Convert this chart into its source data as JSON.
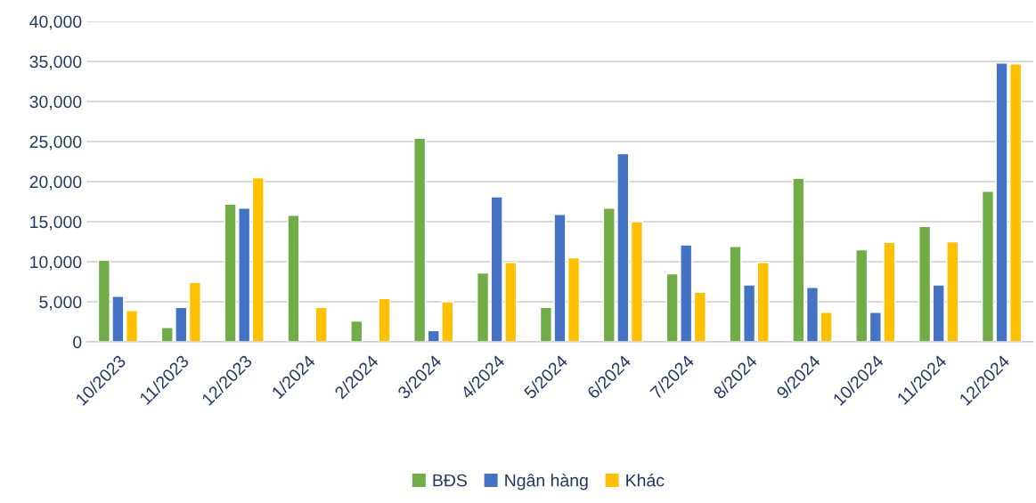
{
  "chart_data": {
    "type": "bar",
    "categories": [
      "10/2023",
      "11/2023",
      "12/2023",
      "1/2024",
      "2/2024",
      "3/2024",
      "4/2024",
      "5/2024",
      "6/2024",
      "7/2024",
      "8/2024",
      "9/2024",
      "10/2024",
      "11/2024",
      "12/2024"
    ],
    "series": [
      {
        "name": "BĐS",
        "color": "#70ad47",
        "values": [
          10200,
          1800,
          17200,
          15800,
          2600,
          25400,
          8600,
          4300,
          16700,
          8500,
          11900,
          20400,
          11500,
          14400,
          18800
        ]
      },
      {
        "name": "Ngân hàng",
        "color": "#4472c4",
        "values": [
          5700,
          4300,
          16700,
          null,
          null,
          1400,
          18100,
          15900,
          23500,
          12100,
          7100,
          6800,
          3700,
          7100,
          34800
        ]
      },
      {
        "name": "Khác",
        "color": "#ffc000",
        "values": [
          3900,
          7400,
          20500,
          4300,
          5400,
          5000,
          9900,
          10500,
          15000,
          6200,
          9900,
          3700,
          12400,
          12500,
          34700
        ]
      }
    ],
    "ylim": [
      0,
      40000
    ],
    "yticks": [
      {
        "value": 0,
        "label": "0"
      },
      {
        "value": 5000,
        "label": "5,000"
      },
      {
        "value": 10000,
        "label": "10,000"
      },
      {
        "value": 15000,
        "label": "15,000"
      },
      {
        "value": 20000,
        "label": "20,000"
      },
      {
        "value": 25000,
        "label": "25,000"
      },
      {
        "value": 30000,
        "label": "30,000"
      },
      {
        "value": 35000,
        "label": "35,000"
      },
      {
        "value": 40000,
        "label": "40,000"
      }
    ],
    "grid": "y",
    "legend": "bottom"
  }
}
